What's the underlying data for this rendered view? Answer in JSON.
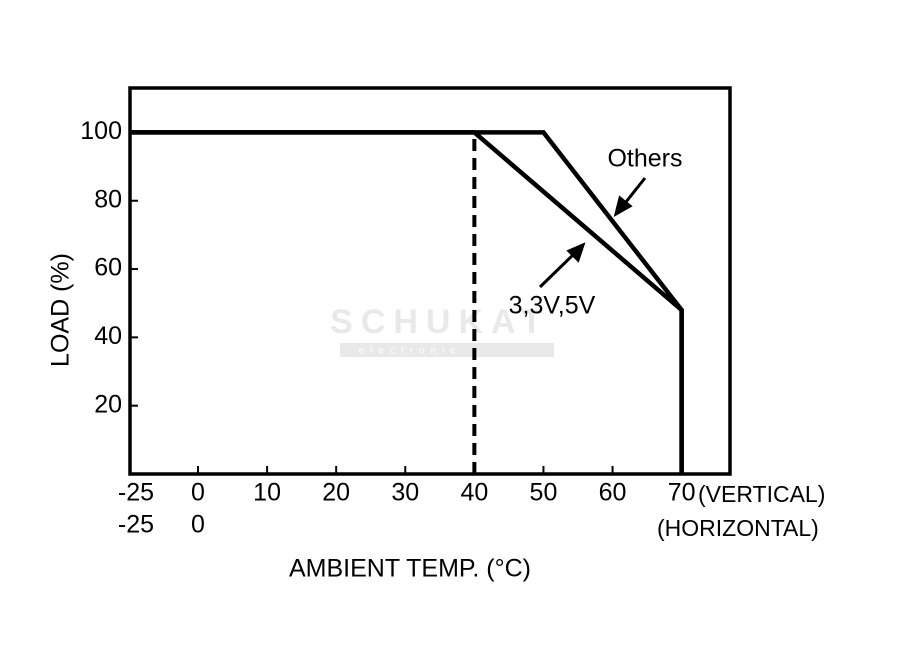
{
  "chart_data": {
    "type": "line",
    "xlabel": "AMBIENT TEMP. (°C)",
    "ylabel": "LOAD (%)",
    "xlim": [
      -25,
      77
    ],
    "ylim": [
      0,
      113
    ],
    "xticks": [
      -25,
      0,
      10,
      20,
      30,
      40,
      50,
      60,
      70
    ],
    "xticks_horizontal": [
      -25,
      0
    ],
    "xtick_row_labels": [
      "(VERTICAL)",
      "(HORIZONTAL)"
    ],
    "yticks": [
      20,
      40,
      60,
      80,
      100
    ],
    "series": [
      {
        "name": "Others",
        "color": "#000000",
        "x": [
          -25,
          50,
          70,
          70
        ],
        "values": [
          100,
          100,
          48,
          0
        ]
      },
      {
        "name": "3,3V,5V",
        "color": "#000000",
        "x": [
          -25,
          40,
          70,
          70
        ],
        "values": [
          100,
          100,
          48,
          0
        ]
      }
    ],
    "reference_line": {
      "x": [
        40,
        40
      ],
      "values": [
        0,
        100
      ]
    },
    "watermark": [
      "SCHUKAT",
      "electronic"
    ]
  }
}
